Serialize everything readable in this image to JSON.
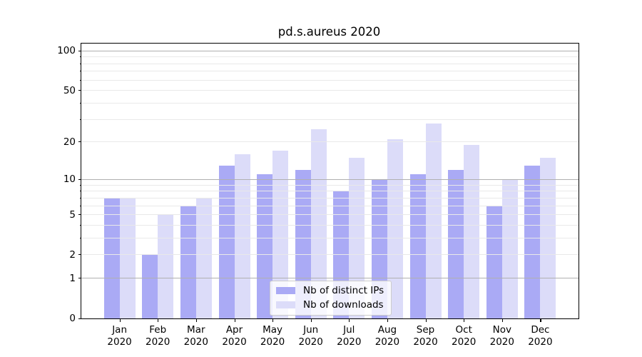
{
  "chart_data": {
    "type": "bar",
    "title": "pd.s.aureus 2020",
    "categories": [
      "Jan",
      "Feb",
      "Mar",
      "Apr",
      "May",
      "Jun",
      "Jul",
      "Aug",
      "Sep",
      "Oct",
      "Nov",
      "Dec"
    ],
    "x_year": "2020",
    "series": [
      {
        "name": "Nb of distinct IPs",
        "color": "#aaaaf5",
        "values": [
          7,
          2,
          6,
          13,
          11,
          12,
          8,
          10,
          11,
          12,
          6,
          13
        ]
      },
      {
        "name": "Nb of downloads",
        "color": "#dcdcf9",
        "values": [
          7,
          5,
          7,
          16,
          17,
          25,
          15,
          21,
          28,
          19,
          10,
          15
        ]
      }
    ],
    "yscale": "log1p",
    "ylim": [
      0,
      114
    ],
    "y_axis": {
      "labeled_ticks": [
        0,
        1,
        2,
        5,
        10,
        20,
        50,
        100
      ],
      "major_grid": [
        1,
        10,
        100
      ],
      "minor_grid": [
        2,
        3,
        4,
        5,
        6,
        7,
        8,
        9,
        20,
        30,
        40,
        50,
        60,
        70,
        80,
        90
      ]
    },
    "grid": true,
    "legend_position": "lower center"
  },
  "colors": {
    "bar_ips": "#aaaaf5",
    "bar_downloads": "#dcdcf9",
    "grid_major": "#b0b0b0",
    "grid_minor": "#e9e9e9",
    "axis": "#000000",
    "legend_border": "#cccccc",
    "legend_background": "rgba(255,255,255,0.8)"
  }
}
